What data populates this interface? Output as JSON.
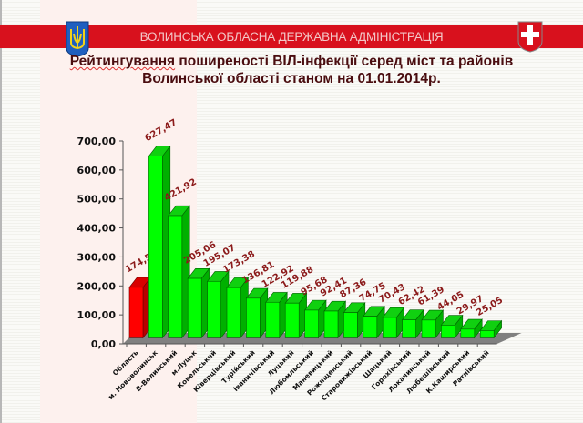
{
  "header": {
    "organization": "ВОЛИНСЬКА ОБЛАСНА ДЕРЖАВНА АДМІНІСТРАЦІЯ",
    "left_emblem": "ukraine-trident-emblem",
    "right_emblem": "volyn-cross-shield-emblem"
  },
  "title": {
    "line1_underlined": "Рейтингування",
    "line1_rest": " поширеності ВІЛ-інфекції серед міст та районів",
    "line2": "Волинської області станом на 01.01.2014р."
  },
  "colors": {
    "header_band": "#d8111d",
    "region_bar": "#ff0000",
    "district_bar": "#00ff00",
    "floor": "#808080",
    "value_label": "#8b1a1a"
  },
  "chart_data": {
    "type": "bar",
    "style": "3d-column",
    "title": "Рейтингування поширеності ВІЛ-інфекції серед міст та районів Волинської області станом на 01.01.2014р.",
    "xlabel": "",
    "ylabel": "",
    "ylim": [
      0,
      700
    ],
    "yticks": [
      "0,00",
      "100,00",
      "200,00",
      "300,00",
      "400,00",
      "500,00",
      "600,00",
      "700,00"
    ],
    "grid": false,
    "legend": null,
    "categories": [
      "Область",
      "м. Нововолинськ",
      "В-Волинський",
      "м.Луцьк",
      "Ковельський",
      "Ківерцівський",
      "Турійський",
      "Іваничівський",
      "Луцький",
      "Любомльський",
      "Маневицький",
      "Рожищенський",
      "Старовижівський",
      "Шацький",
      "Горохівський",
      "Локачинський",
      "Любешівський",
      "К.Каширський",
      "Ратнівський"
    ],
    "values": [
      174.5,
      627.47,
      421.92,
      205.06,
      195.07,
      173.38,
      136.81,
      122.92,
      119.88,
      95.68,
      92.41,
      87.36,
      74.75,
      70.43,
      62.42,
      61.39,
      44.05,
      29.97,
      25.05
    ],
    "value_labels": [
      "174,50",
      "627,47",
      "421,92",
      "205,06",
      "195,07",
      "173,38",
      "136,81",
      "122,92",
      "119,88",
      "95,68",
      "92,41",
      "87,36",
      "74,75",
      "70,43",
      "62,42",
      "61,39",
      "44,05",
      "29,97",
      "25,05"
    ],
    "highlight": {
      "index": 0,
      "color": "#ff0000"
    }
  }
}
